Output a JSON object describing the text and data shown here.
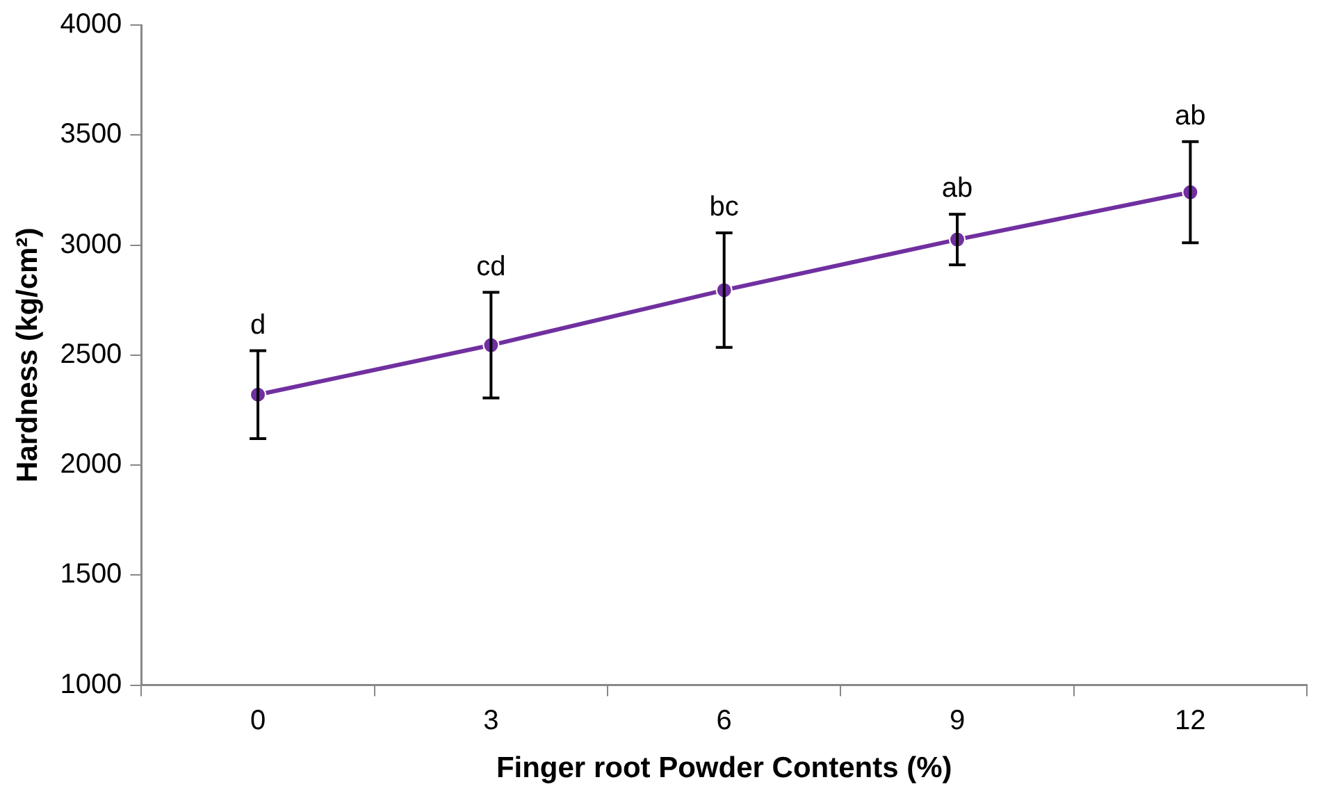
{
  "chart_data": {
    "type": "line",
    "xlabel": "Finger root Powder Contents (%)",
    "ylabel": "Hardness (kg/cm²)",
    "categories": [
      "0",
      "3",
      "6",
      "9",
      "12"
    ],
    "series": [
      {
        "color": "#7030a0",
        "values": [
          2320,
          2545,
          2795,
          3025,
          3240
        ],
        "errors": [
          200,
          240,
          260,
          115,
          230
        ]
      }
    ],
    "ylim": [
      1000,
      4000
    ],
    "yticks": [
      1000,
      1500,
      2000,
      2500,
      3000,
      3500,
      4000
    ],
    "grid": false,
    "legend": false,
    "marker": "circle",
    "line_style": "solid",
    "annotations": [
      {
        "text": "d",
        "x": "0",
        "y": 2520
      },
      {
        "text": "cd",
        "x": "3",
        "y": 2785
      },
      {
        "text": "bc",
        "x": "6",
        "y": 3055
      },
      {
        "text": "ab",
        "x": "9",
        "y": 3140
      },
      {
        "text": "ab",
        "x": "12",
        "y": 3470
      }
    ]
  }
}
